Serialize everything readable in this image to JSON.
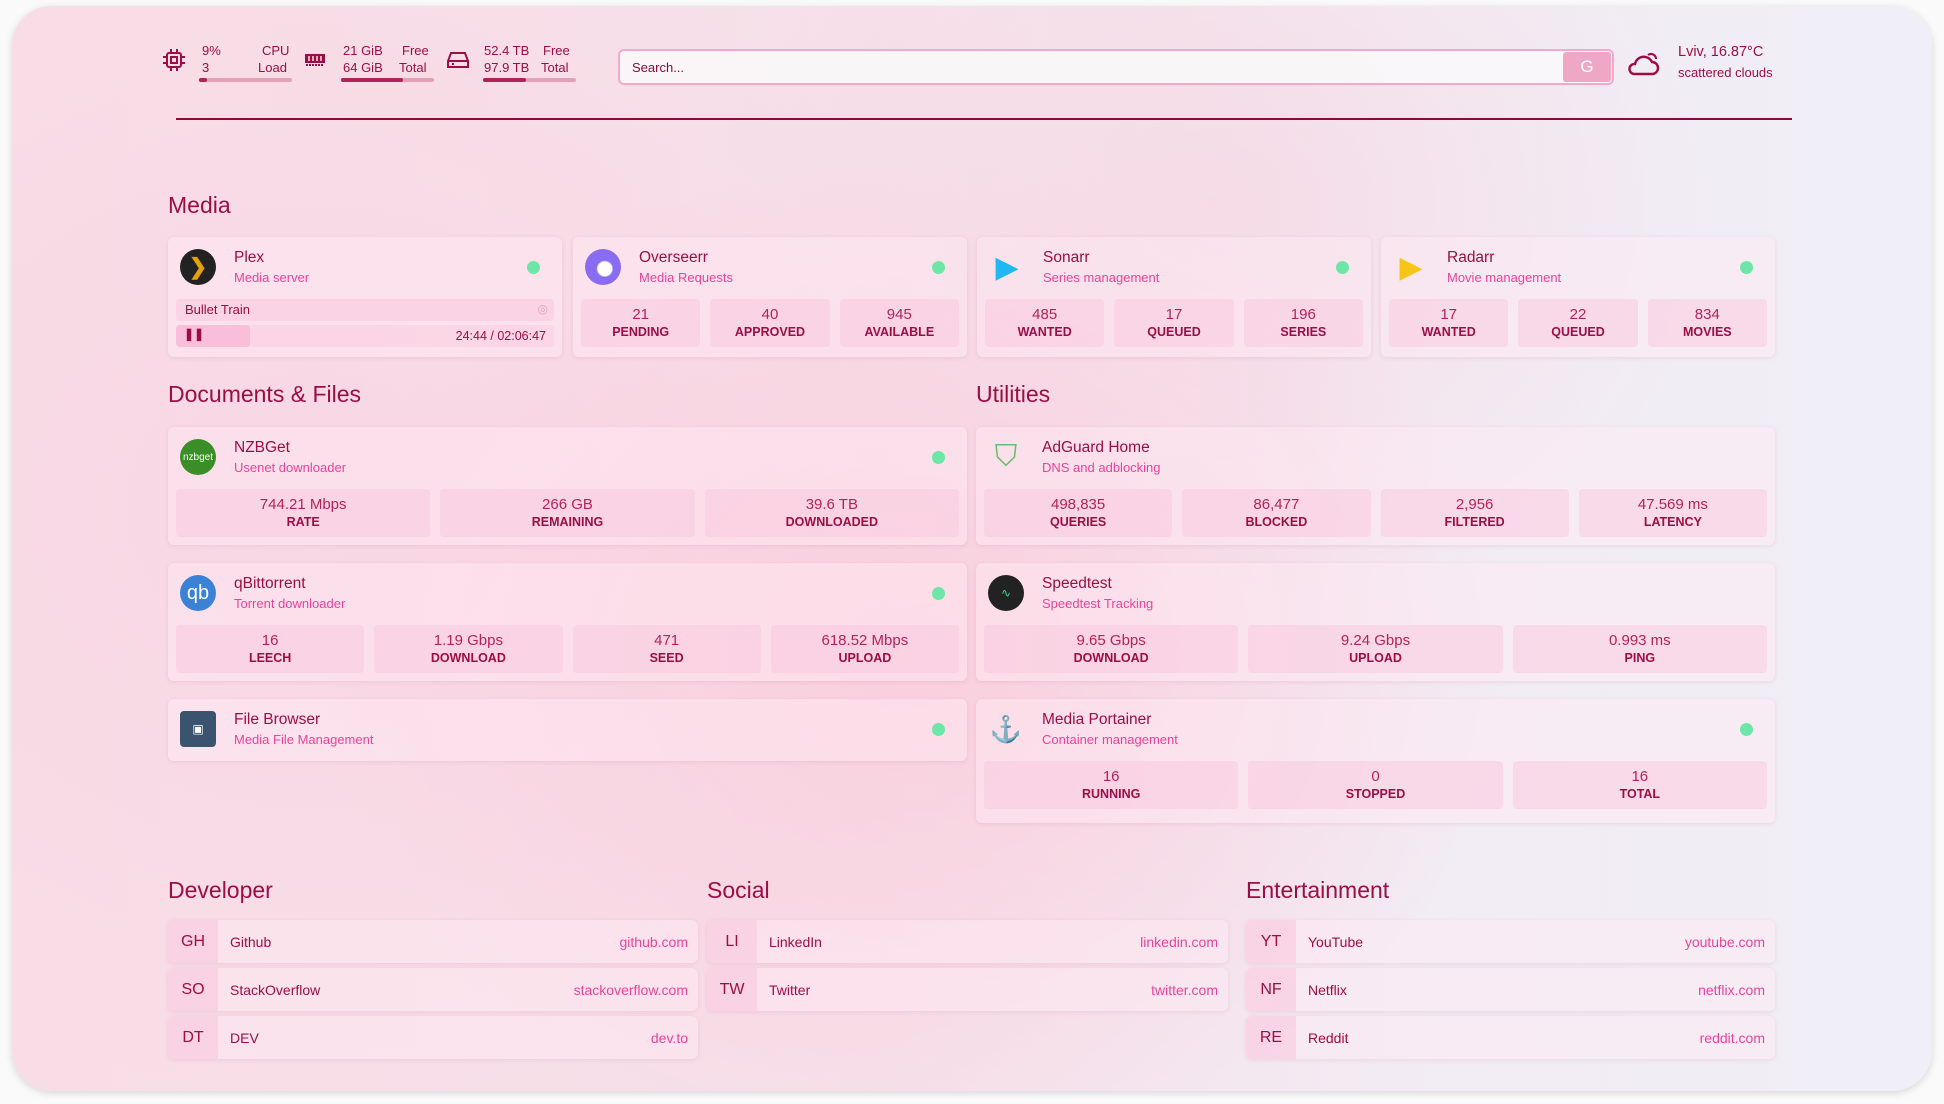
{
  "header": {
    "cpu": {
      "value": "9%",
      "sub": "3",
      "label1": "CPU",
      "label2": "Load",
      "fill": 0.09
    },
    "memory": {
      "value": "21 GiB",
      "sub": "64 GiB",
      "label1": "Free",
      "label2": "Total",
      "fill": 0.67
    },
    "disk": {
      "value": "52.4 TB",
      "sub": "97.9 TB",
      "label1": "Free",
      "label2": "Total",
      "fill": 0.46
    },
    "search": {
      "placeholder": "Search...",
      "button": "G"
    },
    "weather": {
      "location_temp": "Lviv, 16.87°C",
      "condition": "scattered clouds"
    }
  },
  "colors": {
    "accent": "#9b0e45",
    "secondary": "#e8439a",
    "status_ok": "#6ee6a8"
  },
  "sections": {
    "media": "Media",
    "docs": "Documents & Files",
    "utilities": "Utilities",
    "developer": "Developer",
    "social": "Social",
    "entertainment": "Entertainment"
  },
  "plex": {
    "title": "Plex",
    "subtitle": "Media server",
    "now_playing": "Bullet Train",
    "time": "24:44 / 02:06:47",
    "progress": 0.195
  },
  "cards": [
    {
      "id": "overseerr",
      "title": "Overseerr",
      "subtitle": "Media Requests",
      "icon": "overseerr-icon",
      "status": true,
      "stats": [
        {
          "v": "21",
          "l": "PENDING"
        },
        {
          "v": "40",
          "l": "APPROVED"
        },
        {
          "v": "945",
          "l": "AVAILABLE"
        }
      ]
    },
    {
      "id": "sonarr",
      "title": "Sonarr",
      "subtitle": "Series management",
      "icon": "sonarr-icon",
      "status": true,
      "stats": [
        {
          "v": "485",
          "l": "WANTED"
        },
        {
          "v": "17",
          "l": "QUEUED"
        },
        {
          "v": "196",
          "l": "SERIES"
        }
      ]
    },
    {
      "id": "radarr",
      "title": "Radarr",
      "subtitle": "Movie management",
      "icon": "radarr-icon",
      "status": true,
      "stats": [
        {
          "v": "17",
          "l": "WANTED"
        },
        {
          "v": "22",
          "l": "QUEUED"
        },
        {
          "v": "834",
          "l": "MOVIES"
        }
      ]
    },
    {
      "id": "nzbget",
      "title": "NZBGet",
      "subtitle": "Usenet downloader",
      "icon": "nzbget-icon",
      "icon_text": "nzbget",
      "status": true,
      "stats": [
        {
          "v": "744.21 Mbps",
          "l": "RATE"
        },
        {
          "v": "266 GB",
          "l": "REMAINING"
        },
        {
          "v": "39.6 TB",
          "l": "DOWNLOADED"
        }
      ]
    },
    {
      "id": "qbittorrent",
      "title": "qBittorrent",
      "subtitle": "Torrent downloader",
      "icon": "qbittorrent-icon",
      "icon_text": "qb",
      "status": true,
      "stats": [
        {
          "v": "16",
          "l": "LEECH"
        },
        {
          "v": "1.19 Gbps",
          "l": "DOWNLOAD"
        },
        {
          "v": "471",
          "l": "SEED"
        },
        {
          "v": "618.52 Mbps",
          "l": "UPLOAD"
        }
      ]
    },
    {
      "id": "filebrowser",
      "title": "File Browser",
      "subtitle": "Media File Management",
      "icon": "filebrowser-icon",
      "status": true,
      "stats": []
    },
    {
      "id": "adguard",
      "title": "AdGuard Home",
      "subtitle": "DNS and adblocking",
      "icon": "adguard-shield-icon",
      "status": false,
      "stats": [
        {
          "v": "498,835",
          "l": "QUERIES"
        },
        {
          "v": "86,477",
          "l": "BLOCKED"
        },
        {
          "v": "2,956",
          "l": "FILTERED"
        },
        {
          "v": "47.569 ms",
          "l": "LATENCY"
        }
      ]
    },
    {
      "id": "speedtest",
      "title": "Speedtest",
      "subtitle": "Speedtest Tracking",
      "icon": "speedtest-icon",
      "status": false,
      "stats": [
        {
          "v": "9.65 Gbps",
          "l": "DOWNLOAD"
        },
        {
          "v": "9.24 Gbps",
          "l": "UPLOAD"
        },
        {
          "v": "0.993 ms",
          "l": "PING"
        }
      ]
    },
    {
      "id": "portainer",
      "title": "Media Portainer",
      "subtitle": "Container management",
      "icon": "portainer-icon",
      "status": true,
      "stats": [
        {
          "v": "16",
          "l": "RUNNING"
        },
        {
          "v": "0",
          "l": "STOPPED"
        },
        {
          "v": "16",
          "l": "TOTAL"
        }
      ]
    }
  ],
  "bookmarks": {
    "developer": [
      {
        "abbr": "GH",
        "name": "Github",
        "url": "github.com"
      },
      {
        "abbr": "SO",
        "name": "StackOverflow",
        "url": "stackoverflow.com"
      },
      {
        "abbr": "DT",
        "name": "DEV",
        "url": "dev.to"
      }
    ],
    "social": [
      {
        "abbr": "LI",
        "name": "LinkedIn",
        "url": "linkedin.com"
      },
      {
        "abbr": "TW",
        "name": "Twitter",
        "url": "twitter.com"
      }
    ],
    "entertainment": [
      {
        "abbr": "YT",
        "name": "YouTube",
        "url": "youtube.com"
      },
      {
        "abbr": "NF",
        "name": "Netflix",
        "url": "netflix.com"
      },
      {
        "abbr": "RE",
        "name": "Reddit",
        "url": "reddit.com"
      }
    ]
  }
}
